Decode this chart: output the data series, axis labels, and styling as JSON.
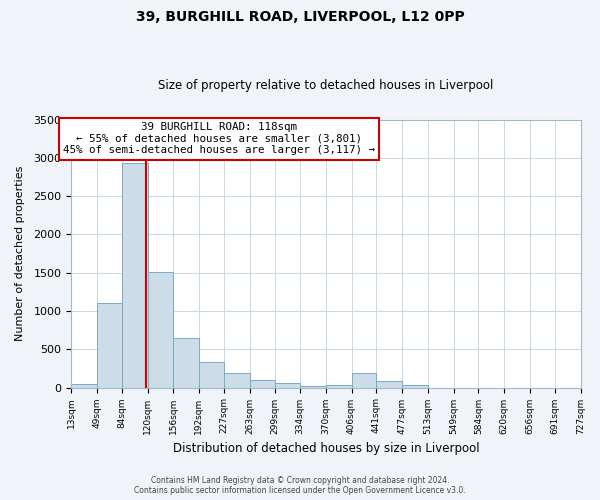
{
  "title": "39, BURGHILL ROAD, LIVERPOOL, L12 0PP",
  "subtitle": "Size of property relative to detached houses in Liverpool",
  "xlabel": "Distribution of detached houses by size in Liverpool",
  "ylabel": "Number of detached properties",
  "bar_color": "#ccdce8",
  "bar_edge_color": "#7aaac8",
  "vline_value": 118,
  "vline_color": "#cc0000",
  "annotation_line1": "39 BURGHILL ROAD: 118sqm",
  "annotation_line2": "← 55% of detached houses are smaller (3,801)",
  "annotation_line3": "45% of semi-detached houses are larger (3,117) →",
  "annotation_box_color": "#ffffff",
  "annotation_box_edge_color": "#cc0000",
  "bin_edges": [
    13,
    49,
    84,
    120,
    156,
    192,
    227,
    263,
    299,
    334,
    370,
    406,
    441,
    477,
    513,
    549,
    584,
    620,
    656,
    691,
    727
  ],
  "bin_heights": [
    50,
    1110,
    2930,
    1510,
    650,
    330,
    195,
    100,
    55,
    25,
    40,
    195,
    80,
    30,
    0,
    0,
    0,
    0,
    0,
    0
  ],
  "ylim": [
    0,
    3500
  ],
  "yticks": [
    0,
    500,
    1000,
    1500,
    2000,
    2500,
    3000,
    3500
  ],
  "tick_labels": [
    "13sqm",
    "49sqm",
    "84sqm",
    "120sqm",
    "156sqm",
    "192sqm",
    "227sqm",
    "263sqm",
    "299sqm",
    "334sqm",
    "370sqm",
    "406sqm",
    "441sqm",
    "477sqm",
    "513sqm",
    "549sqm",
    "584sqm",
    "620sqm",
    "656sqm",
    "691sqm",
    "727sqm"
  ],
  "footer_line1": "Contains HM Land Registry data © Crown copyright and database right 2024.",
  "footer_line2": "Contains public sector information licensed under the Open Government Licence v3.0.",
  "background_color": "#f0f4f8",
  "plot_bg_color": "#ffffff",
  "grid_color": "#c8d8e8"
}
